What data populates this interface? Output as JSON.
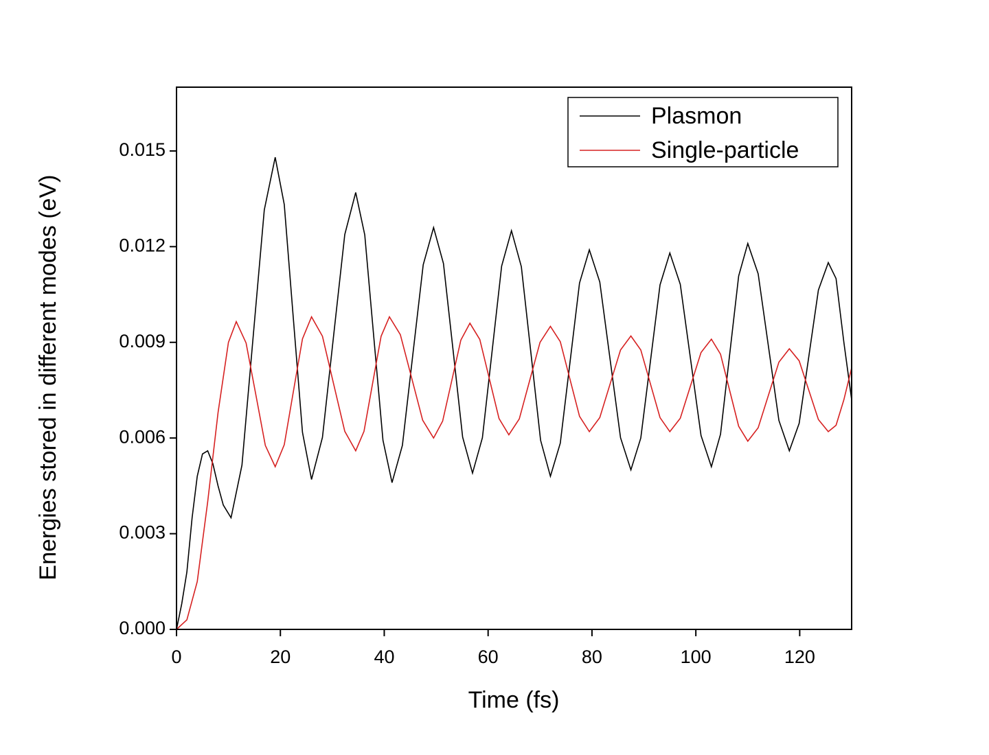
{
  "chart_data": {
    "type": "line",
    "x_label": "Time (fs)",
    "y_label": "Energies stored in different modes (eV)",
    "xlim": [
      0,
      130
    ],
    "xticks": [
      0,
      20,
      40,
      60,
      80,
      100,
      120
    ],
    "ylim": [
      0,
      0.017
    ],
    "yticks": [
      {
        "value": 0,
        "label": "0.000"
      },
      0.003,
      0.006,
      0.009,
      0.012,
      0.015
    ],
    "legend": "upper right",
    "series": [
      {
        "name": "Plasmon",
        "color": "#000000",
        "x": [
          0,
          1,
          2,
          3,
          4,
          5,
          6,
          7,
          8,
          9,
          10.5,
          12.6,
          14.75,
          16.9,
          19,
          20.75,
          22.5,
          24.25,
          26,
          28.1,
          30.25,
          32.4,
          34.5,
          36.25,
          38,
          39.75,
          41.5,
          43.5,
          45.5,
          47.5,
          49.5,
          51.4,
          53.25,
          55.1,
          57,
          58.9,
          60.75,
          62.6,
          64.5,
          66.4,
          68.25,
          70.1,
          72,
          73.9,
          75.75,
          77.6,
          79.5,
          81.5,
          83.5,
          85.5,
          87.5,
          89.4,
          91.25,
          93.1,
          95,
          97,
          99,
          101,
          103,
          104.75,
          106.5,
          108.25,
          110,
          112,
          114,
          116,
          118,
          119.9,
          121.75,
          123.6,
          125.5,
          127,
          128.5,
          130
        ],
        "values": [
          0,
          0.0008,
          0.0018,
          0.0035,
          0.0048,
          0.0055,
          0.0056,
          0.0052,
          0.0045,
          0.0039,
          0.0035,
          0.00515,
          0.00915,
          0.01315,
          0.0148,
          0.01332,
          0.00975,
          0.00618,
          0.0047,
          0.00602,
          0.0092,
          0.01238,
          0.0137,
          0.01237,
          0.00915,
          0.00593,
          0.0046,
          0.00577,
          0.0086,
          0.01143,
          0.0126,
          0.01147,
          0.00875,
          0.00603,
          0.0049,
          0.00601,
          0.0087,
          0.01139,
          0.0125,
          0.01137,
          0.00865,
          0.00593,
          0.0048,
          0.00584,
          0.00835,
          0.01086,
          0.0119,
          0.01089,
          0.00845,
          0.00601,
          0.005,
          0.006,
          0.0084,
          0.0108,
          0.0118,
          0.01082,
          0.00845,
          0.00608,
          0.0051,
          0.00612,
          0.0086,
          0.01108,
          0.0121,
          0.01115,
          0.00885,
          0.00655,
          0.0056,
          0.00646,
          0.00855,
          0.01064,
          0.0115,
          0.011,
          0.009,
          0.0072
        ]
      },
      {
        "name": "Single-particle",
        "color": "#d62020",
        "x": [
          0,
          2,
          4,
          6,
          8,
          10,
          11.5,
          13.4,
          15.25,
          17.1,
          19,
          20.75,
          22.5,
          24.25,
          26,
          28.1,
          30.25,
          32.4,
          34.5,
          36.1,
          37.75,
          39.4,
          41,
          43.1,
          45.25,
          47.4,
          49.5,
          51.25,
          53,
          54.75,
          56.5,
          58.4,
          60.25,
          62.1,
          64,
          66,
          68,
          70,
          72,
          73.9,
          75.75,
          77.6,
          79.5,
          81.5,
          83.5,
          85.5,
          87.5,
          89.4,
          91.25,
          93.1,
          95,
          97,
          99,
          101,
          103,
          104.75,
          106.5,
          108.25,
          110,
          112,
          114,
          116,
          118,
          119.9,
          121.75,
          123.6,
          125.5,
          127,
          128.5,
          130
        ],
        "values": [
          0,
          0.0003,
          0.0015,
          0.004,
          0.0068,
          0.009,
          0.00965,
          0.00898,
          0.00738,
          0.00577,
          0.0051,
          0.00579,
          0.00745,
          0.00911,
          0.0098,
          0.00919,
          0.0077,
          0.00621,
          0.0056,
          0.00621,
          0.0077,
          0.00919,
          0.0098,
          0.00924,
          0.0079,
          0.00656,
          0.006,
          0.00653,
          0.0078,
          0.00907,
          0.0096,
          0.00909,
          0.00785,
          0.00661,
          0.0061,
          0.0066,
          0.0078,
          0.009,
          0.0095,
          0.00902,
          0.00785,
          0.00668,
          0.0062,
          0.00664,
          0.0077,
          0.00876,
          0.0092,
          0.00876,
          0.0077,
          0.00664,
          0.0062,
          0.00662,
          0.00765,
          0.00868,
          0.0091,
          0.00863,
          0.0075,
          0.00637,
          0.0059,
          0.00632,
          0.00735,
          0.00838,
          0.0088,
          0.00842,
          0.0075,
          0.00658,
          0.0062,
          0.0064,
          0.0072,
          0.0082
        ]
      }
    ]
  }
}
